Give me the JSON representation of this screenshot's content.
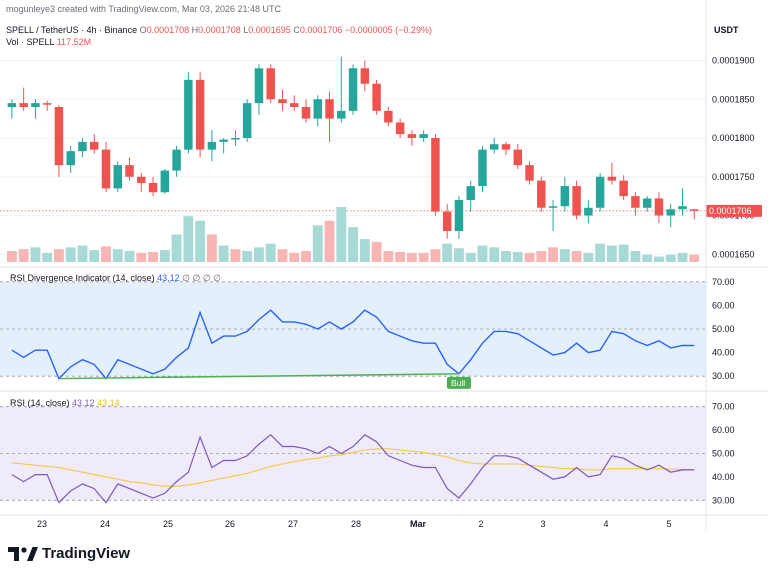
{
  "header": {
    "credit": "mogunleye3 created with TradingView.com, Mar 03, 2026 21:48 UTC",
    "symbol": "SPELL / TetherUS · 4h · Binance",
    "o_label": "O",
    "o_value": "0.0001708",
    "h_label": "H",
    "h_value": "0.0001708",
    "l_label": "L",
    "l_value": "0.0001695",
    "c_label": "C",
    "c_value": "0.0001706",
    "change": "−0.0000005 (−0.29%)",
    "vol_label": "Vol · SPELL",
    "vol_value": "117.52M",
    "currency": "USDT"
  },
  "price_axis": {
    "ticks": [
      "0.0001900",
      "0.0001850",
      "0.0001800",
      "0.0001750",
      "0.0001700",
      "0.0001650"
    ],
    "last_price": "0.0001706",
    "last_price_color": "#ef5350"
  },
  "rsi_div": {
    "title": "RSI Divergence Indicator (14, close)",
    "value": "43.12",
    "extra": "∅ ∅ ∅ ∅",
    "ticks": [
      "70.00",
      "60.00",
      "50.00",
      "40.00",
      "30.00"
    ],
    "bull_label": "Bull",
    "line_color": "#2962ff",
    "fill_color": "#e3f0fb"
  },
  "rsi": {
    "title": "RSI (14, close)",
    "value": "43.12",
    "ma_value": "43.14",
    "ticks": [
      "70.00",
      "60.00",
      "50.00",
      "40.00",
      "30.00"
    ],
    "line_color": "#7e57c2",
    "ma_color": "#f5c842",
    "fill_color": "#f0ebf9"
  },
  "time_axis": [
    "23",
    "24",
    "25",
    "26",
    "27",
    "28",
    "Mar",
    "2",
    "3",
    "4",
    "5"
  ],
  "brand": "TradingView",
  "chart_data": [
    {
      "type": "candlestick",
      "title": "SPELL / TetherUS · 4h · Binance",
      "ylabel": "USDT",
      "ylim": [
        0.000164,
        0.000192
      ],
      "up_color": "#26a69a",
      "down_color": "#ef5350",
      "candles": [
        [
          0.000184,
          0.000185,
          0.0001825,
          0.0001845
        ],
        [
          0.0001845,
          0.0001865,
          0.0001835,
          0.000184
        ],
        [
          0.000184,
          0.000185,
          0.0001825,
          0.0001845
        ],
        [
          0.0001845,
          0.0001848,
          0.0001835,
          0.0001843
        ],
        [
          0.000184,
          0.0001842,
          0.000175,
          0.0001765
        ],
        [
          0.0001765,
          0.000179,
          0.0001755,
          0.0001783
        ],
        [
          0.0001783,
          0.00018,
          0.0001775,
          0.0001795
        ],
        [
          0.0001795,
          0.0001805,
          0.000178,
          0.0001785
        ],
        [
          0.0001785,
          0.0001795,
          0.000173,
          0.0001735
        ],
        [
          0.0001735,
          0.000177,
          0.000173,
          0.0001765
        ],
        [
          0.0001765,
          0.0001775,
          0.0001745,
          0.000175
        ],
        [
          0.000175,
          0.0001755,
          0.000173,
          0.0001742
        ],
        [
          0.0001742,
          0.000175,
          0.0001725,
          0.000173
        ],
        [
          0.000173,
          0.000176,
          0.0001728,
          0.0001758
        ],
        [
          0.0001758,
          0.000179,
          0.000175,
          0.0001785
        ],
        [
          0.0001785,
          0.0001885,
          0.000178,
          0.0001875
        ],
        [
          0.0001875,
          0.0001885,
          0.0001775,
          0.0001785
        ],
        [
          0.0001785,
          0.000181,
          0.000177,
          0.0001795
        ],
        [
          0.0001795,
          0.00018,
          0.000178,
          0.0001798
        ],
        [
          0.0001798,
          0.000181,
          0.000179,
          0.00018
        ],
        [
          0.00018,
          0.000185,
          0.0001795,
          0.0001845
        ],
        [
          0.0001845,
          0.0001895,
          0.000183,
          0.000189
        ],
        [
          0.000189,
          0.0001895,
          0.0001845,
          0.000185
        ],
        [
          0.000185,
          0.0001862,
          0.0001835,
          0.0001845
        ],
        [
          0.0001845,
          0.0001855,
          0.0001835,
          0.000184
        ],
        [
          0.000184,
          0.000185,
          0.000182,
          0.0001825
        ],
        [
          0.0001825,
          0.0001855,
          0.0001815,
          0.000185
        ],
        [
          0.000185,
          0.000186,
          0.0001795,
          0.0001825
        ],
        [
          0.0001825,
          0.0001905,
          0.000182,
          0.0001835
        ],
        [
          0.0001835,
          0.0001895,
          0.000183,
          0.000189
        ],
        [
          0.000189,
          0.00019,
          0.000186,
          0.000187
        ],
        [
          0.000187,
          0.0001875,
          0.000183,
          0.0001835
        ],
        [
          0.0001835,
          0.000184,
          0.0001815,
          0.000182
        ],
        [
          0.000182,
          0.0001825,
          0.00018,
          0.0001805
        ],
        [
          0.0001805,
          0.000181,
          0.000179,
          0.00018
        ],
        [
          0.00018,
          0.000181,
          0.0001795,
          0.0001805
        ],
        [
          0.00018,
          0.0001805,
          0.00017,
          0.0001705
        ],
        [
          0.0001705,
          0.0001715,
          0.000167,
          0.000168
        ],
        [
          0.000168,
          0.0001725,
          0.000167,
          0.000172
        ],
        [
          0.000172,
          0.0001745,
          0.0001705,
          0.0001738
        ],
        [
          0.0001738,
          0.000179,
          0.000173,
          0.0001785
        ],
        [
          0.0001785,
          0.00018,
          0.000178,
          0.0001792
        ],
        [
          0.0001792,
          0.0001795,
          0.0001778,
          0.0001785
        ],
        [
          0.0001785,
          0.0001792,
          0.000176,
          0.0001765
        ],
        [
          0.0001765,
          0.000177,
          0.000174,
          0.0001745
        ],
        [
          0.0001745,
          0.000175,
          0.0001705,
          0.000171
        ],
        [
          0.000171,
          0.000172,
          0.000168,
          0.0001712
        ],
        [
          0.0001712,
          0.000175,
          0.0001705,
          0.0001738
        ],
        [
          0.0001738,
          0.0001745,
          0.0001695,
          0.00017
        ],
        [
          0.00017,
          0.000172,
          0.000169,
          0.000171
        ],
        [
          0.000171,
          0.0001755,
          0.0001705,
          0.000175
        ],
        [
          0.000175,
          0.0001768,
          0.000174,
          0.0001745
        ],
        [
          0.0001745,
          0.0001752,
          0.000172,
          0.0001725
        ],
        [
          0.0001725,
          0.000173,
          0.00017,
          0.000171
        ],
        [
          0.000171,
          0.0001725,
          0.0001705,
          0.0001722
        ],
        [
          0.0001722,
          0.000173,
          0.000169,
          0.00017
        ],
        [
          0.00017,
          0.0001715,
          0.0001685,
          0.0001708
        ],
        [
          0.0001708,
          0.0001735,
          0.00017,
          0.0001712
        ],
        [
          0.0001708,
          0.0001708,
          0.0001695,
          0.0001706
        ]
      ],
      "volumes": [
        [
          12,
          0
        ],
        [
          14,
          0
        ],
        [
          16,
          1
        ],
        [
          10,
          1
        ],
        [
          14,
          0
        ],
        [
          16,
          1
        ],
        [
          18,
          1
        ],
        [
          13,
          1
        ],
        [
          17,
          0
        ],
        [
          14,
          1
        ],
        [
          12,
          1
        ],
        [
          10,
          0
        ],
        [
          11,
          0
        ],
        [
          13,
          1
        ],
        [
          30,
          1
        ],
        [
          50,
          1
        ],
        [
          45,
          1
        ],
        [
          30,
          0
        ],
        [
          18,
          1
        ],
        [
          14,
          0
        ],
        [
          12,
          1
        ],
        [
          16,
          1
        ],
        [
          20,
          1
        ],
        [
          14,
          0
        ],
        [
          10,
          0
        ],
        [
          12,
          0
        ],
        [
          40,
          1
        ],
        [
          45,
          0
        ],
        [
          60,
          1
        ],
        [
          38,
          1
        ],
        [
          25,
          1
        ],
        [
          22,
          0
        ],
        [
          12,
          0
        ],
        [
          11,
          0
        ],
        [
          10,
          0
        ],
        [
          10,
          0
        ],
        [
          14,
          0
        ],
        [
          20,
          1
        ],
        [
          15,
          1
        ],
        [
          10,
          1
        ],
        [
          18,
          1
        ],
        [
          16,
          1
        ],
        [
          12,
          1
        ],
        [
          11,
          1
        ],
        [
          10,
          0
        ],
        [
          12,
          0
        ],
        [
          16,
          0
        ],
        [
          14,
          1
        ],
        [
          12,
          0
        ],
        [
          10,
          1
        ],
        [
          20,
          1
        ],
        [
          18,
          1
        ],
        [
          19,
          1
        ],
        [
          12,
          1
        ],
        [
          8,
          1
        ],
        [
          6,
          1
        ],
        [
          8,
          1
        ],
        [
          10,
          1
        ],
        [
          8,
          0
        ]
      ],
      "volume_units": "relative",
      "volume_last": "117.52M",
      "x_labels": [
        "23",
        "24",
        "25",
        "26",
        "27",
        "28",
        "Mar",
        "2",
        "3",
        "4",
        "5"
      ]
    },
    {
      "type": "line",
      "title": "RSI Divergence Indicator (14, close)",
      "ylim": [
        25,
        75
      ],
      "x_labels": [
        "23",
        "24",
        "25",
        "26",
        "27",
        "28",
        "Mar",
        "2",
        "3",
        "4",
        "5"
      ],
      "series": [
        {
          "name": "RSI",
          "values": [
            41,
            38,
            41,
            41,
            29,
            34,
            37,
            35,
            29,
            37,
            35,
            33,
            31,
            33,
            38,
            42,
            57,
            44,
            47,
            47,
            49,
            54,
            58,
            53,
            53,
            52,
            50,
            53,
            50,
            53,
            58,
            55,
            49,
            47,
            45,
            44,
            44,
            35,
            31,
            37,
            44,
            49,
            49,
            48,
            45,
            42,
            39,
            40,
            44,
            40,
            41,
            49,
            48,
            45,
            43,
            45,
            42,
            43,
            43
          ]
        }
      ],
      "annotations": [
        {
          "type": "divergence",
          "label": "Bull",
          "from": [
            4,
            29
          ],
          "to": [
            38,
            31
          ]
        }
      ]
    },
    {
      "type": "line",
      "title": "RSI (14, close)",
      "ylim": [
        25,
        75
      ],
      "x_labels": [
        "23",
        "24",
        "25",
        "26",
        "27",
        "28",
        "Mar",
        "2",
        "3",
        "4",
        "5"
      ],
      "series": [
        {
          "name": "RSI",
          "values": [
            41,
            38,
            41,
            41,
            29,
            34,
            37,
            35,
            29,
            37,
            35,
            33,
            31,
            33,
            38,
            42,
            57,
            44,
            47,
            47,
            49,
            54,
            58,
            53,
            53,
            52,
            50,
            53,
            50,
            53,
            58,
            55,
            49,
            47,
            45,
            44,
            44,
            35,
            31,
            37,
            44,
            49,
            49,
            48,
            45,
            42,
            39,
            40,
            44,
            40,
            41,
            49,
            48,
            45,
            43,
            45,
            42,
            43,
            43
          ]
        },
        {
          "name": "RSI-based MA",
          "values": [
            46,
            45.5,
            45,
            44.5,
            44,
            43,
            42,
            41,
            40,
            39,
            38,
            37.5,
            36.5,
            36,
            36,
            36.5,
            37.5,
            38.5,
            39.5,
            40.5,
            41.5,
            43,
            44.5,
            45.5,
            46.5,
            47.5,
            48,
            49,
            49.5,
            50.5,
            51.5,
            52,
            52,
            51.5,
            51,
            50.5,
            49.5,
            48.5,
            47,
            46,
            45.5,
            45.5,
            45.5,
            45.5,
            45,
            44.5,
            44,
            43.5,
            43.5,
            43,
            43,
            43.5,
            43.5,
            43.5,
            43.5,
            43.5,
            43.3,
            43.2,
            43.14
          ]
        }
      ]
    }
  ]
}
